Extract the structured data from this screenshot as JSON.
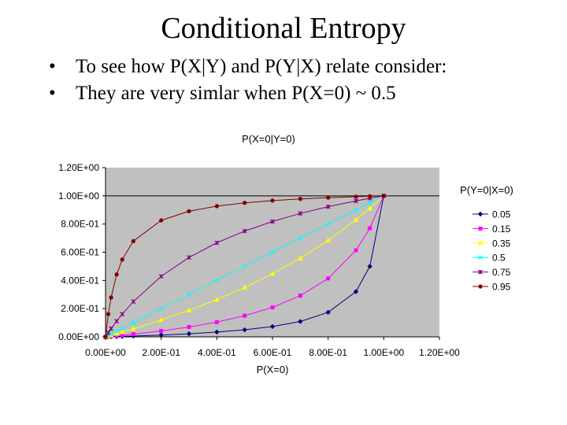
{
  "slide": {
    "title": "Conditional Entropy",
    "bullets": [
      {
        "marker": "•",
        "text": "To see how P(X|Y) and P(Y|X) relate consider:"
      },
      {
        "marker": "•",
        "text": "They are very simlar when P(X=0) ~ 0.5"
      }
    ]
  },
  "chart_data": {
    "type": "line",
    "title": "P(X=0|Y=0)",
    "xlabel": "P(X=0)",
    "ylabel": "",
    "legend_title": "P(Y=0|X=0)",
    "legend_position": "right",
    "plot_background": "#c0c0c0",
    "grid": "horizontal at 1.00E+00",
    "xlim": [
      0,
      1.2
    ],
    "ylim": [
      0,
      1.2
    ],
    "x_ticks": [
      0,
      0.2,
      0.4,
      0.6,
      0.8,
      1.0,
      1.2
    ],
    "x_tick_labels": [
      "0.00E+00",
      "2.00E-01",
      "4.00E-01",
      "6.00E-01",
      "8.00E-01",
      "1.00E+00",
      "1.20E+00"
    ],
    "y_ticks": [
      0,
      0.2,
      0.4,
      0.6,
      0.8,
      1.0,
      1.2
    ],
    "y_tick_labels": [
      "0.00E+00",
      "2.00E-01",
      "4.00E-01",
      "6.00E-01",
      "8.00E-01",
      "1.00E+00",
      "1.20E+00"
    ],
    "x": [
      0,
      0.01,
      0.02,
      0.04,
      0.06,
      0.1,
      0.2,
      0.3,
      0.4,
      0.5,
      0.6,
      0.7,
      0.8,
      0.9,
      0.95,
      1.0
    ],
    "series": [
      {
        "name": "0.05",
        "color": "#000080",
        "marker": "diamond",
        "values": [
          0,
          0.0005,
          0.001,
          0.0022,
          0.0034,
          0.0058,
          0.013,
          0.022,
          0.034,
          0.05,
          0.073,
          0.109,
          0.174,
          0.321,
          0.5,
          1.0
        ]
      },
      {
        "name": "0.15",
        "color": "#ff00ff",
        "marker": "square",
        "values": [
          0,
          0.0018,
          0.0036,
          0.0073,
          0.011,
          0.019,
          0.042,
          0.07,
          0.105,
          0.15,
          0.209,
          0.292,
          0.414,
          0.614,
          0.77,
          1.0
        ]
      },
      {
        "name": "0.35",
        "color": "#ffff00",
        "marker": "triangle",
        "values": [
          0,
          0.0054,
          0.011,
          0.022,
          0.034,
          0.056,
          0.119,
          0.188,
          0.264,
          0.35,
          0.447,
          0.557,
          0.683,
          0.829,
          0.911,
          1.0
        ]
      },
      {
        "name": "0.5",
        "color": "#00ffff",
        "marker": "x",
        "values": [
          0,
          0.01,
          0.02,
          0.04,
          0.06,
          0.1,
          0.2,
          0.3,
          0.4,
          0.5,
          0.6,
          0.7,
          0.8,
          0.9,
          0.95,
          1.0
        ]
      },
      {
        "name": "0.75",
        "color": "#800080",
        "marker": "star",
        "values": [
          0,
          0.029,
          0.058,
          0.111,
          0.161,
          0.25,
          0.429,
          0.563,
          0.667,
          0.75,
          0.818,
          0.875,
          0.923,
          0.964,
          0.983,
          1.0
        ]
      },
      {
        "name": "0.95",
        "color": "#800000",
        "marker": "circle",
        "values": [
          0,
          0.161,
          0.279,
          0.442,
          0.548,
          0.679,
          0.826,
          0.891,
          0.927,
          0.95,
          0.966,
          0.978,
          0.987,
          0.994,
          0.997,
          1.0
        ]
      }
    ]
  }
}
